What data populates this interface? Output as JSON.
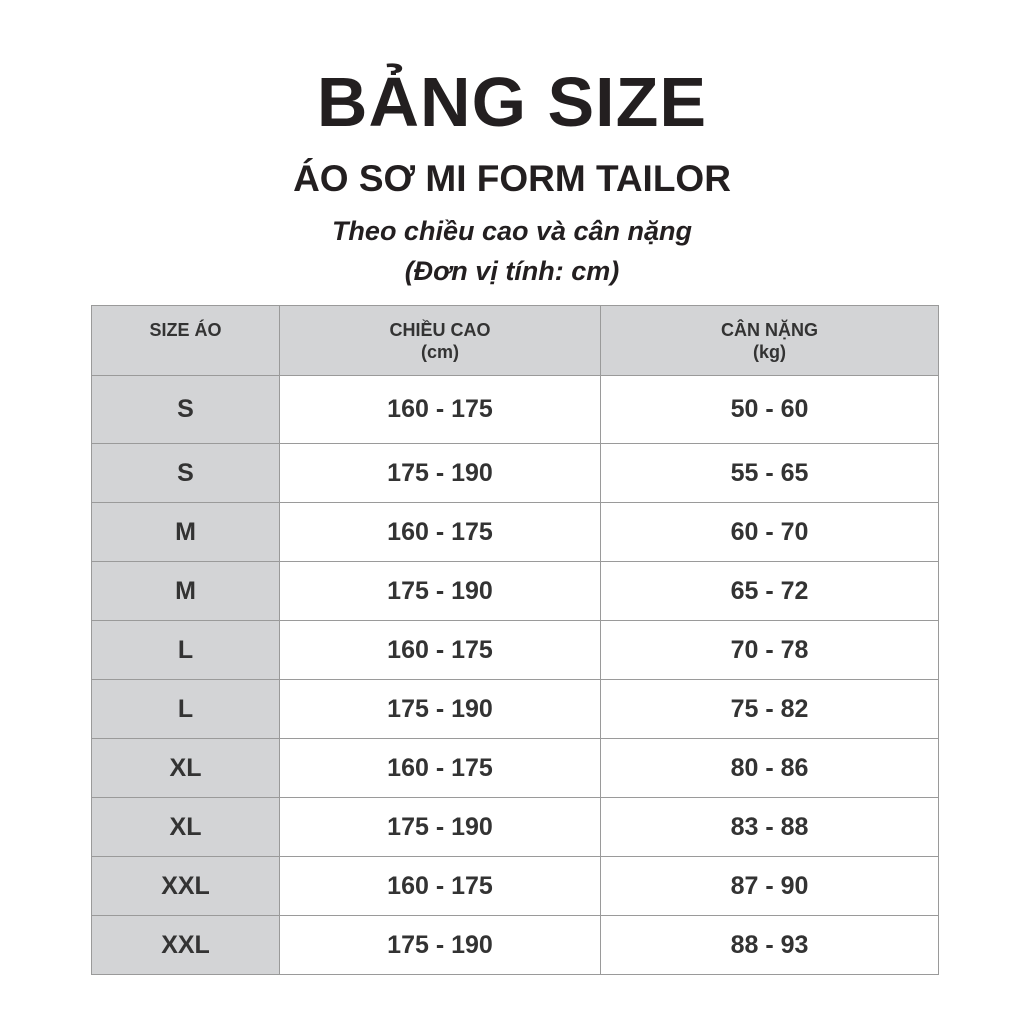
{
  "header": {
    "title": "BẢNG SIZE",
    "subtitle": "ÁO SƠ MI FORM TAILOR",
    "note_line1": "Theo chiều cao và cân nặng",
    "note_line2": "(Đơn vị tính: cm)"
  },
  "table": {
    "columns": [
      {
        "label": "SIZE ÁO",
        "unit": ""
      },
      {
        "label": "CHIỀU CAO",
        "unit": "(cm)"
      },
      {
        "label": "CÂN NẶNG",
        "unit": "(kg)"
      }
    ],
    "rows": [
      {
        "size": "S",
        "height": "160 - 175",
        "weight": "50 - 60"
      },
      {
        "size": "S",
        "height": "175 - 190",
        "weight": "55 - 65"
      },
      {
        "size": "M",
        "height": "160 - 175",
        "weight": "60 - 70"
      },
      {
        "size": "M",
        "height": "175 - 190",
        "weight": "65 - 72"
      },
      {
        "size": "L",
        "height": "160 - 175",
        "weight": "70 - 78"
      },
      {
        "size": "L",
        "height": "175 - 190",
        "weight": "75 - 82"
      },
      {
        "size": "XL",
        "height": "160 - 175",
        "weight": "80 - 86"
      },
      {
        "size": "XL",
        "height": "175 - 190",
        "weight": "83 - 88"
      },
      {
        "size": "XXL",
        "height": "160 - 175",
        "weight": "87 - 90"
      },
      {
        "size": "XXL",
        "height": "175 - 190",
        "weight": "88 - 93"
      }
    ]
  },
  "colors": {
    "header_bg": "#d3d4d6",
    "text": "#333333"
  }
}
